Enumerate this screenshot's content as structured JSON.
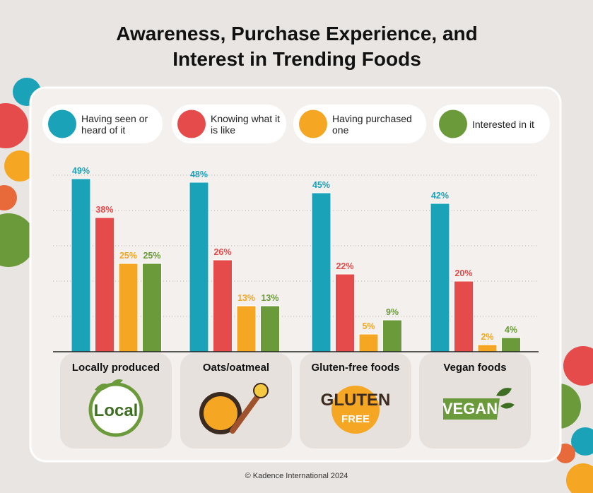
{
  "chart_data": {
    "type": "bar",
    "title": "Awareness, Purchase Experience, and Interest in Trending Foods",
    "categories": [
      "Locally produced",
      "Oats/oatmeal",
      "Gluten-free foods",
      "Vegan foods"
    ],
    "series": [
      {
        "name": "Having seen or heard of it",
        "color": "#1aa3b8",
        "values": [
          49,
          48,
          45,
          42
        ],
        "value_labels": [
          "49%",
          "48%",
          "45%",
          "42%"
        ]
      },
      {
        "name": "Knowing what it is like",
        "color": "#e54b4b",
        "values": [
          38,
          26,
          22,
          20
        ],
        "value_labels": [
          "38%",
          "26%",
          "22%",
          "20%"
        ]
      },
      {
        "name": "Having purchased one",
        "color": "#f5a623",
        "values": [
          25,
          13,
          5,
          2
        ],
        "value_labels": [
          "25%",
          "13%",
          "5%",
          "2%"
        ]
      },
      {
        "name": "Interested in it",
        "color": "#6a9a3a",
        "values": [
          25,
          13,
          9,
          4
        ],
        "value_labels": [
          "25%",
          "13%",
          "9%",
          "4%"
        ]
      }
    ],
    "ylim": [
      0,
      50
    ],
    "yticks": [
      0,
      10,
      20,
      30,
      40,
      50
    ],
    "grid": true,
    "icon_texts": {
      "local": "Local",
      "gluten": [
        "GLUTEN",
        "FREE"
      ],
      "vegan": "VEGAN"
    },
    "footer": "© Kadence International 2024"
  }
}
